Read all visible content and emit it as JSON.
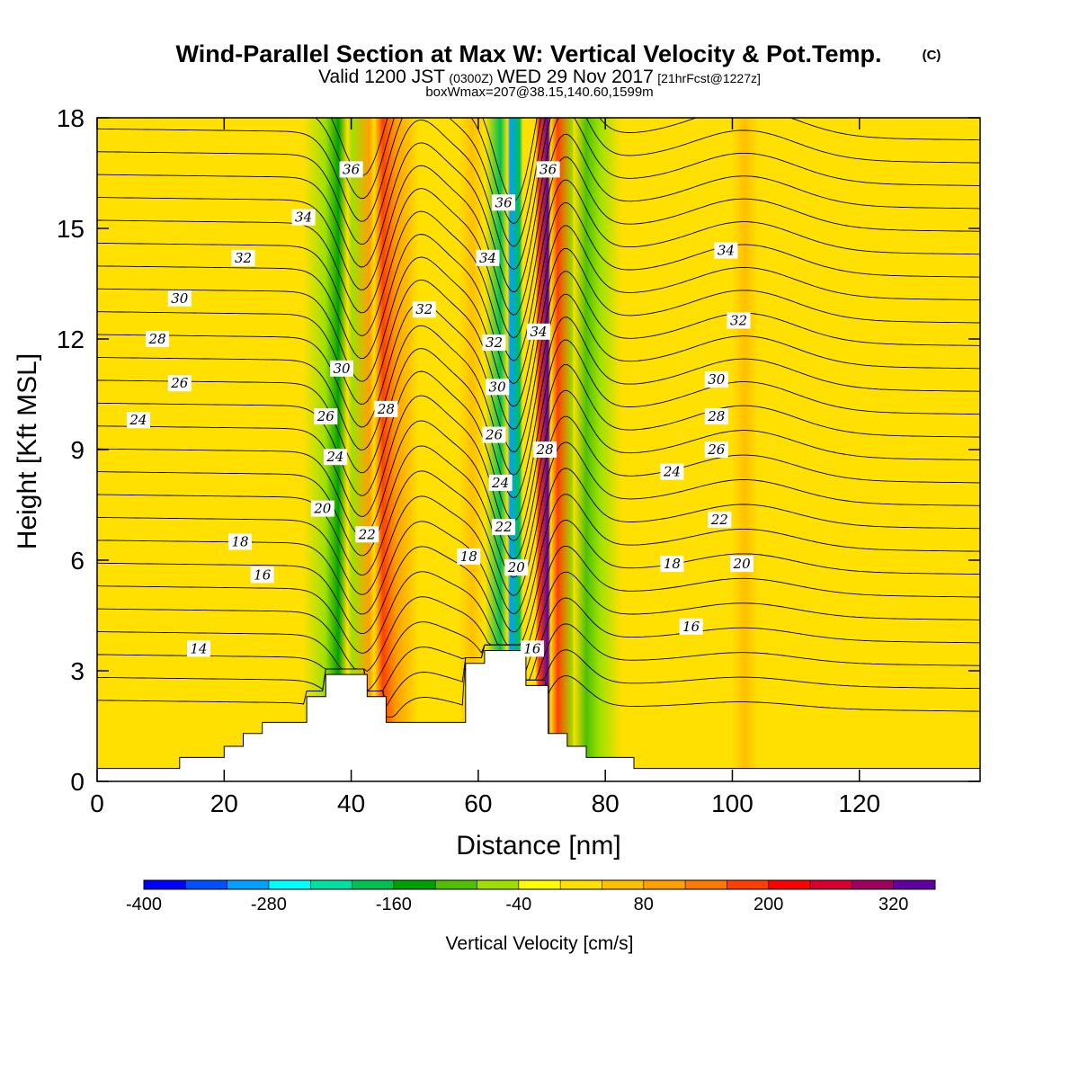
{
  "title": {
    "main": "Wind-Parallel Section at Max W: Vertical Velocity & Pot.Temp.",
    "copyright": "(C)",
    "valid_prefix": "Valid 1200 JST",
    "valid_z": "(0300Z)",
    "valid_date": "WED 29 Nov 2017",
    "valid_fcst": "[21hrFcst@1227z]",
    "box_line": "boxWmax=207@38.15,140.60,1599m"
  },
  "colorbar": {
    "label": "Vertical Velocity [cm/s]",
    "tick_labels": [
      "-400",
      "-280",
      "-160",
      "-40",
      "80",
      "200",
      "320"
    ],
    "colors": [
      "#0000ff",
      "#0050ff",
      "#00a0ff",
      "#00ffff",
      "#00e0a0",
      "#00c050",
      "#00a000",
      "#50c000",
      "#a0e000",
      "#ffff00",
      "#ffe000",
      "#ffc000",
      "#ffa000",
      "#ff7800",
      "#ff4000",
      "#ff0000",
      "#d80030",
      "#a00060",
      "#6000a0"
    ]
  },
  "chart_data": {
    "type": "heatmap",
    "title": "Wind-Parallel Section at Max W: Vertical Velocity & Pot.Temp.",
    "xlabel": "Distance [nm]",
    "ylabel": "Height [Kft MSL]",
    "xlim": [
      0,
      139
    ],
    "ylim": [
      0,
      18
    ],
    "x_ticks": [
      0,
      20,
      40,
      60,
      80,
      100,
      120
    ],
    "y_ticks": [
      0,
      3,
      6,
      9,
      12,
      15,
      18
    ],
    "colorbar_range": [
      -400,
      360
    ],
    "colorbar_step": 40,
    "shaded_field": "Vertical Velocity [cm/s]",
    "contour_field": "Potential temperature",
    "contour_interval": 1,
    "contour_levels_labeled": [
      14,
      16,
      18,
      20,
      22,
      24,
      26,
      28,
      30,
      32,
      34,
      36
    ],
    "vertical_velocity_bands": [
      {
        "x": 38,
        "value": -130
      },
      {
        "x": 45,
        "value": 180
      },
      {
        "x": 59,
        "value": 60
      },
      {
        "x": 65,
        "value": -320
      },
      {
        "x": 71,
        "value": 330
      },
      {
        "x": 77,
        "value": -120
      },
      {
        "x": 90,
        "value": 10
      },
      {
        "x": 102,
        "value": 60
      }
    ],
    "terrain_profile": [
      [
        0,
        0.35
      ],
      [
        13,
        0.35
      ],
      [
        13,
        0.65
      ],
      [
        20,
        0.65
      ],
      [
        20,
        0.95
      ],
      [
        23,
        0.95
      ],
      [
        23,
        1.3
      ],
      [
        26,
        1.3
      ],
      [
        26,
        1.6
      ],
      [
        33,
        1.6
      ],
      [
        33,
        2.3
      ],
      [
        36,
        2.3
      ],
      [
        36,
        2.9
      ],
      [
        42.5,
        2.9
      ],
      [
        42.5,
        2.3
      ],
      [
        45.5,
        2.3
      ],
      [
        45.5,
        1.6
      ],
      [
        58,
        1.6
      ],
      [
        58,
        3.2
      ],
      [
        61,
        3.2
      ],
      [
        61,
        3.55
      ],
      [
        67.5,
        3.55
      ],
      [
        67.5,
        2.6
      ],
      [
        71,
        2.6
      ],
      [
        71,
        1.3
      ],
      [
        74,
        1.3
      ],
      [
        74,
        0.95
      ],
      [
        77,
        0.95
      ],
      [
        77,
        0.65
      ],
      [
        84.5,
        0.65
      ],
      [
        84.5,
        0.35
      ],
      [
        139,
        0.35
      ]
    ],
    "contour_label_positions": [
      {
        "label": "14",
        "x": 16,
        "y": 3.6
      },
      {
        "label": "16",
        "x": 26,
        "y": 5.6
      },
      {
        "label": "18",
        "x": 22.5,
        "y": 6.5
      },
      {
        "label": "20",
        "x": 35.5,
        "y": 7.4
      },
      {
        "label": "22",
        "x": 42.5,
        "y": 6.7
      },
      {
        "label": "24",
        "x": 6.5,
        "y": 9.8
      },
      {
        "label": "24",
        "x": 37.5,
        "y": 8.8
      },
      {
        "label": "26",
        "x": 13,
        "y": 10.8
      },
      {
        "label": "26",
        "x": 36,
        "y": 9.9
      },
      {
        "label": "28",
        "x": 9.5,
        "y": 12.0
      },
      {
        "label": "28",
        "x": 45.5,
        "y": 10.1
      },
      {
        "label": "30",
        "x": 13,
        "y": 13.1
      },
      {
        "label": "30",
        "x": 38.5,
        "y": 11.2
      },
      {
        "label": "32",
        "x": 23,
        "y": 14.2
      },
      {
        "label": "32",
        "x": 51.5,
        "y": 12.8
      },
      {
        "label": "34",
        "x": 32.5,
        "y": 15.3
      },
      {
        "label": "36",
        "x": 40,
        "y": 16.6
      },
      {
        "label": "36",
        "x": 64,
        "y": 15.7
      },
      {
        "label": "34",
        "x": 61.5,
        "y": 14.2
      },
      {
        "label": "32",
        "x": 62.5,
        "y": 11.9
      },
      {
        "label": "30",
        "x": 63,
        "y": 10.7
      },
      {
        "label": "28",
        "x": 70.5,
        "y": 9.0
      },
      {
        "label": "26",
        "x": 62.5,
        "y": 9.4
      },
      {
        "label": "24",
        "x": 63.5,
        "y": 8.1
      },
      {
        "label": "22",
        "x": 64,
        "y": 6.9
      },
      {
        "label": "20",
        "x": 66,
        "y": 5.8
      },
      {
        "label": "18",
        "x": 58.5,
        "y": 6.1
      },
      {
        "label": "16",
        "x": 68.5,
        "y": 3.6
      },
      {
        "label": "36",
        "x": 71,
        "y": 16.6
      },
      {
        "label": "34",
        "x": 69.5,
        "y": 12.2
      },
      {
        "label": "34",
        "x": 99,
        "y": 14.4
      },
      {
        "label": "32",
        "x": 101,
        "y": 12.5
      },
      {
        "label": "30",
        "x": 97.5,
        "y": 10.9
      },
      {
        "label": "28",
        "x": 97.5,
        "y": 9.9
      },
      {
        "label": "26",
        "x": 97.5,
        "y": 9.0
      },
      {
        "label": "24",
        "x": 90.5,
        "y": 8.4
      },
      {
        "label": "22",
        "x": 98,
        "y": 7.1
      },
      {
        "label": "20",
        "x": 101.5,
        "y": 5.9
      },
      {
        "label": "18",
        "x": 90.5,
        "y": 5.9
      },
      {
        "label": "16",
        "x": 93.5,
        "y": 4.2
      }
    ]
  }
}
